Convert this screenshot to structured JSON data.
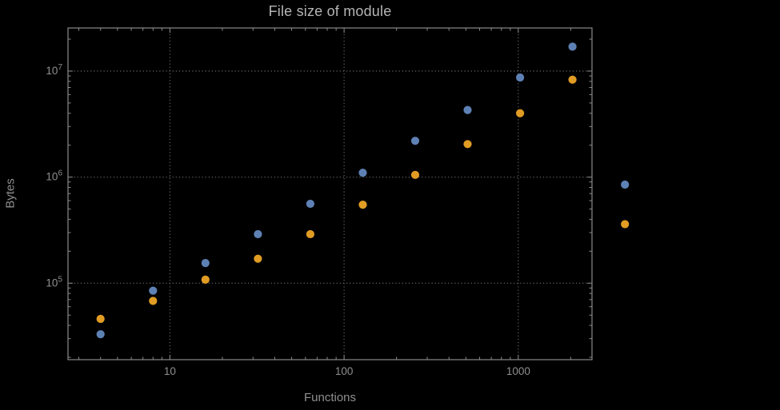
{
  "chart_data": {
    "type": "scatter",
    "title": "File size of module",
    "xlabel": "Functions",
    "ylabel": "Bytes",
    "x_scale": "log",
    "y_scale": "log",
    "grid": "dotted",
    "legend": "none",
    "xlim": [
      2.6,
      2650
    ],
    "ylim": [
      19000,
      25500000
    ],
    "x": [
      4,
      8,
      16,
      32,
      64,
      128,
      256,
      512,
      1024,
      2048,
      4096
    ],
    "series": [
      {
        "name": "series-1-blue",
        "color": "#5E81B5",
        "values": [
          33000,
          85000,
          155000,
          290000,
          560000,
          1100000,
          2200000,
          4300000,
          8700000,
          17000000,
          850000
        ]
      },
      {
        "name": "series-2-orange",
        "color": "#E19C24",
        "values": [
          46000,
          68000,
          108000,
          170000,
          290000,
          550000,
          1050000,
          2050000,
          4000000,
          8300000,
          360000
        ]
      }
    ],
    "x_ticks": [
      {
        "value": 10,
        "label": "10"
      },
      {
        "value": 100,
        "label": "100"
      },
      {
        "value": 1000,
        "label": "1000"
      }
    ],
    "y_ticks": [
      {
        "value": 100000,
        "mantissa": "10",
        "exponent": "5"
      },
      {
        "value": 1000000,
        "mantissa": "10",
        "exponent": "6"
      },
      {
        "value": 10000000,
        "mantissa": "10",
        "exponent": "7"
      }
    ],
    "background": "#000000",
    "frame_color": "#8a8a8a",
    "grid_color": "#666666",
    "text_color": "#8f8f8f",
    "title_color": "#b5b5b5"
  }
}
